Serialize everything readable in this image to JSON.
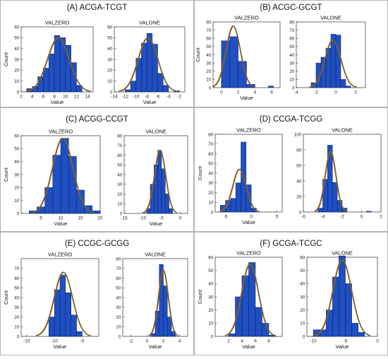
{
  "chart_data": [
    {
      "type": "bar",
      "panel_title": "(A) ACGA-TCGT",
      "subplots": [
        {
          "title": "VALZERO",
          "xlabel": "Value",
          "ylabel": "Count",
          "xlim": [
            2,
            15
          ],
          "ylim": [
            0,
            60
          ],
          "xticks": [
            2,
            4,
            6,
            8,
            10,
            12,
            14
          ],
          "yticks": [
            0,
            10,
            20,
            30,
            40,
            50,
            60
          ],
          "bins": [
            [
              3,
              4,
              3
            ],
            [
              4,
              5,
              5
            ],
            [
              5,
              6,
              14
            ],
            [
              6,
              7,
              22
            ],
            [
              7,
              8,
              35
            ],
            [
              8,
              9,
              52
            ],
            [
              9,
              10,
              50
            ],
            [
              10,
              11,
              43
            ],
            [
              11,
              12,
              27
            ],
            [
              12,
              13,
              6
            ]
          ],
          "fit": {
            "mean": 8.7,
            "sd": 1.95,
            "peak": 50
          }
        },
        {
          "title": "VALONE",
          "xlabel": "Value",
          "ylabel": "",
          "xlim": [
            -14,
            -1
          ],
          "ylim": [
            0,
            60
          ],
          "xticks": [
            -14,
            -12,
            -10,
            -8,
            -6,
            -4,
            -2
          ],
          "yticks": [
            0,
            10,
            20,
            30,
            40,
            50,
            60
          ],
          "bins": [
            [
              -12,
              -11,
              2
            ],
            [
              -11,
              -10,
              10
            ],
            [
              -10,
              -9,
              31
            ],
            [
              -9,
              -8,
              45
            ],
            [
              -8,
              -7,
              54
            ],
            [
              -7,
              -6,
              44
            ],
            [
              -6,
              -5,
              17
            ],
            [
              -5,
              -4,
              6
            ],
            [
              -3,
              -2,
              1
            ]
          ],
          "fit": {
            "mean": -7.8,
            "sd": 1.8,
            "peak": 50
          }
        }
      ]
    },
    {
      "type": "bar",
      "panel_title": "(B) ACGC-GCGT",
      "subplots": [
        {
          "title": "VALZERO",
          "xlabel": "Value",
          "ylabel": "Count",
          "xlim": [
            -1,
            7
          ],
          "ylim": [
            0,
            80
          ],
          "xticks": [
            0,
            2,
            4,
            6
          ],
          "yticks": [
            0,
            10,
            20,
            30,
            40,
            50,
            60,
            70,
            80
          ],
          "bins": [
            [
              0,
              1,
              57
            ],
            [
              1,
              2,
              62
            ],
            [
              2,
              3,
              32
            ],
            [
              3,
              4,
              4
            ],
            [
              5.6,
              6.2,
              2
            ]
          ],
          "fit": {
            "mean": 1.4,
            "sd": 0.85,
            "peak": 75
          }
        },
        {
          "title": "VALONE",
          "xlabel": "",
          "ylabel": "",
          "xlim": [
            -4,
            3
          ],
          "ylim": [
            0,
            80
          ],
          "xticks": [
            -4,
            -2,
            0,
            2
          ],
          "yticks": [
            0,
            10,
            20,
            30,
            40,
            50,
            60,
            70,
            80
          ],
          "bins": [
            [
              -2.5,
              -2,
              6
            ],
            [
              -2,
              -1.5,
              30
            ],
            [
              -1.5,
              -1,
              37
            ],
            [
              -1,
              -0.5,
              48
            ],
            [
              -0.5,
              0,
              65
            ],
            [
              0,
              0.5,
              64
            ],
            [
              0.5,
              1,
              10
            ],
            [
              1,
              1.5,
              2
            ]
          ],
          "fit": {
            "mean": -0.3,
            "sd": 0.8,
            "peak": 58
          }
        }
      ]
    },
    {
      "type": "bar",
      "panel_title": "(C) ACGG-CCGT",
      "subplots": [
        {
          "title": "VALZERO",
          "xlabel": "Value",
          "ylabel": "Count",
          "xlim": [
            0,
            20
          ],
          "ylim": [
            0,
            60
          ],
          "xticks": [
            5,
            10,
            15,
            20
          ],
          "yticks": [
            0,
            10,
            20,
            30,
            40,
            50,
            60
          ],
          "bins": [
            [
              2,
              4,
              2
            ],
            [
              4,
              6,
              5
            ],
            [
              6,
              8,
              20
            ],
            [
              8,
              10,
              45
            ],
            [
              10,
              12,
              58
            ],
            [
              12,
              14,
              44
            ],
            [
              14,
              16,
              18
            ],
            [
              16,
              18,
              6
            ],
            [
              18,
              20,
              2
            ]
          ],
          "fit": {
            "mean": 10.5,
            "sd": 2.6,
            "peak": 58
          }
        },
        {
          "title": "VALONE",
          "xlabel": "Value",
          "ylabel": "",
          "xlim": [
            -15,
            2
          ],
          "ylim": [
            0,
            80
          ],
          "xticks": [
            -15,
            -10,
            -5,
            0
          ],
          "yticks": [
            0,
            10,
            20,
            30,
            40,
            50,
            60,
            70,
            80
          ],
          "bins": [
            [
              -9,
              -8,
              5
            ],
            [
              -8,
              -7,
              30
            ],
            [
              -7,
              -6,
              50
            ],
            [
              -6,
              -5,
              65
            ],
            [
              -5,
              -4,
              46
            ],
            [
              -4,
              -3,
              20
            ],
            [
              -3,
              -2,
              5
            ]
          ],
          "fit": {
            "mean": -5.4,
            "sd": 1.5,
            "peak": 65
          }
        }
      ]
    },
    {
      "type": "bar",
      "panel_title": "(D) CCGA-TCGG",
      "subplots": [
        {
          "title": "VALZERO",
          "xlabel": "Value",
          "ylabel": "Count",
          "xlim": [
            -7,
            6
          ],
          "ylim": [
            0,
            80
          ],
          "xticks": [
            -5,
            0,
            5
          ],
          "yticks": [
            0,
            10,
            20,
            30,
            40,
            50,
            60,
            70,
            80
          ],
          "bins": [
            [
              -6,
              -5,
              7
            ],
            [
              -5,
              -4,
              12
            ],
            [
              -4,
              -3,
              14
            ],
            [
              -3,
              -2,
              30
            ],
            [
              -2,
              -1,
              72
            ],
            [
              -1,
              0,
              28
            ],
            [
              0,
              1,
              4
            ]
          ],
          "fit": {
            "mean": -2.3,
            "sd": 1.3,
            "peak": 44
          }
        },
        {
          "title": "VALONE",
          "xlabel": "",
          "ylabel": "",
          "xlim": [
            -6,
            2
          ],
          "ylim": [
            0,
            100
          ],
          "xticks": [
            -6,
            -4,
            -2,
            0,
            2
          ],
          "yticks": [
            0,
            20,
            40,
            60,
            80,
            100
          ],
          "bins": [
            [
              -4.5,
              -4,
              5
            ],
            [
              -4,
              -3.5,
              42
            ],
            [
              -3.5,
              -3,
              86
            ],
            [
              -3,
              -2.5,
              38
            ],
            [
              -2.5,
              -2,
              15
            ],
            [
              -2,
              -1.5,
              5
            ],
            [
              0.5,
              1,
              1
            ]
          ],
          "fit": {
            "mean": -3.2,
            "sd": 0.55,
            "peak": 78
          }
        }
      ]
    },
    {
      "type": "bar",
      "panel_title": "(E) CCGC-GCGG",
      "subplots": [
        {
          "title": "VALZERO",
          "xlabel": "Value",
          "ylabel": "Count",
          "xlim": [
            -16,
            -2
          ],
          "ylim": [
            0,
            80
          ],
          "xticks": [
            -15,
            -10,
            -5
          ],
          "yticks": [
            0,
            10,
            20,
            30,
            40,
            50,
            60,
            70
          ],
          "bins": [
            [
              -11,
              -10,
              20
            ],
            [
              -10,
              -9,
              48
            ],
            [
              -9,
              -8,
              63
            ],
            [
              -8,
              -7,
              45
            ],
            [
              -7,
              -6,
              22
            ],
            [
              -6,
              -5,
              5
            ]
          ],
          "fit": {
            "mean": -8.4,
            "sd": 1.65,
            "peak": 66
          }
        },
        {
          "title": "VALONE",
          "xlabel": "Value",
          "ylabel": "",
          "xlim": [
            -3,
            5
          ],
          "ylim": [
            0,
            80
          ],
          "xticks": [
            -2,
            0,
            2,
            4
          ],
          "yticks": [
            0,
            10,
            20,
            30,
            40,
            50,
            60,
            70,
            80
          ],
          "bins": [
            [
              0.5,
              1,
              3
            ],
            [
              1,
              1.5,
              26
            ],
            [
              1.5,
              2,
              74
            ],
            [
              2,
              2.5,
              52
            ],
            [
              2.5,
              3,
              20
            ],
            [
              3,
              3.5,
              5
            ]
          ],
          "fit": {
            "mean": 2.0,
            "sd": 0.6,
            "peak": 68
          }
        }
      ]
    },
    {
      "type": "bar",
      "panel_title": "(F) GCGA-TCGC",
      "subplots": [
        {
          "title": "VALZERO",
          "xlabel": "Value",
          "ylabel": "Count",
          "xlim": [
            0,
            10
          ],
          "ylim": [
            0,
            60
          ],
          "xticks": [
            2,
            4,
            6,
            8
          ],
          "yticks": [
            0,
            10,
            20,
            30,
            40,
            50,
            60
          ],
          "bins": [
            [
              2,
              3,
              2
            ],
            [
              3,
              4,
              30
            ],
            [
              4,
              5,
              46
            ],
            [
              5,
              6,
              56
            ],
            [
              6,
              7,
              22
            ],
            [
              7,
              8,
              10
            ],
            [
              8,
              9,
              1
            ]
          ],
          "fit": {
            "mean": 5.2,
            "sd": 1.25,
            "peak": 55
          }
        },
        {
          "title": "VALONE",
          "xlabel": "Value",
          "ylabel": "",
          "xlim": [
            -11,
            0
          ],
          "ylim": [
            0,
            60
          ],
          "xticks": [
            -10,
            -5,
            0
          ],
          "yticks": [
            0,
            10,
            20,
            30,
            40,
            50,
            60
          ],
          "bins": [
            [
              -10,
              -9,
              5
            ],
            [
              -9,
              -8,
              5
            ],
            [
              -8,
              -7,
              20
            ],
            [
              -7,
              -6,
              45
            ],
            [
              -6,
              -5,
              61
            ],
            [
              -5,
              -4,
              40
            ],
            [
              -4,
              -3,
              10
            ],
            [
              -3,
              -2,
              3
            ]
          ],
          "fit": {
            "mean": -5.5,
            "sd": 1.45,
            "peak": 58
          }
        }
      ]
    }
  ]
}
